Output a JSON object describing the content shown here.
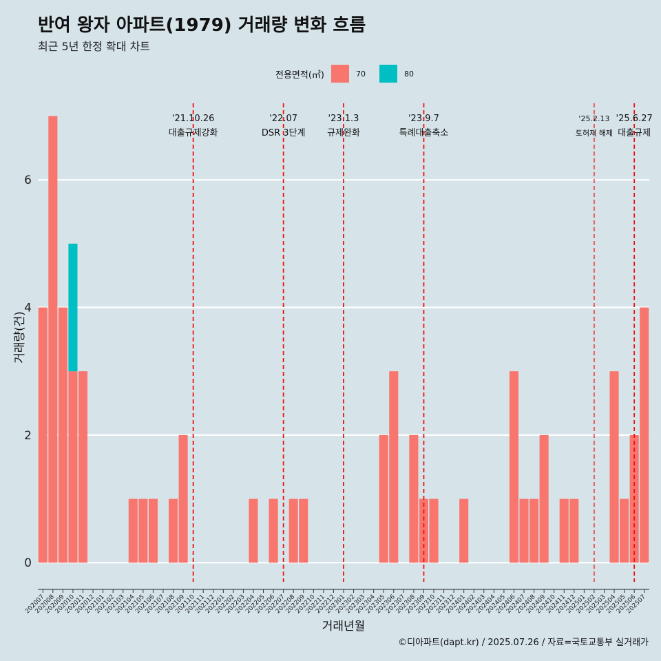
{
  "title": "반여 왕자 아파트(1979) 거래량 변화 흐름",
  "subtitle": "최근 5년 한정 확대 차트",
  "legend": {
    "title": "전용면적(㎡)",
    "items": [
      {
        "label": "70",
        "color": "#f8766d"
      },
      {
        "label": "80",
        "color": "#00bfc4"
      }
    ]
  },
  "caption": "©디아파트(dapt.kr) / 2025.07.26 / 자료=국토교통부 실거래가",
  "chart_data": {
    "type": "bar",
    "xlabel": "거래년월",
    "ylabel": "거래량(건)",
    "ylim": [
      -0.3,
      7.2
    ],
    "yticks": [
      0,
      2,
      4,
      6
    ],
    "categories": [
      "202007",
      "202008",
      "202009",
      "202010",
      "202011",
      "202012",
      "202101",
      "202102",
      "202103",
      "202104",
      "202105",
      "202106",
      "202107",
      "202108",
      "202109",
      "202110",
      "202111",
      "202112",
      "202201",
      "202202",
      "202203",
      "202204",
      "202205",
      "202206",
      "202207",
      "202208",
      "202209",
      "202210",
      "202211",
      "202212",
      "202301",
      "202302",
      "202303",
      "202304",
      "202305",
      "202306",
      "202307",
      "202308",
      "202309",
      "202310",
      "202311",
      "202312",
      "202401",
      "202402",
      "202403",
      "202404",
      "202405",
      "202406",
      "202407",
      "202408",
      "202409",
      "202410",
      "202411",
      "202412",
      "202501",
      "202502",
      "202503",
      "202504",
      "202505",
      "202506",
      "202507"
    ],
    "series": [
      {
        "name": "70",
        "color": "#f8766d",
        "values": [
          4,
          7,
          4,
          3,
          3,
          0,
          0,
          0,
          0,
          1,
          1,
          1,
          0,
          1,
          2,
          0,
          0,
          0,
          0,
          0,
          0,
          1,
          0,
          1,
          0,
          1,
          1,
          0,
          0,
          0,
          0,
          0,
          0,
          0,
          2,
          3,
          0,
          2,
          1,
          1,
          0,
          0,
          1,
          0,
          0,
          0,
          0,
          3,
          1,
          1,
          2,
          0,
          1,
          1,
          0,
          0,
          0,
          3,
          1,
          2,
          4
        ]
      },
      {
        "name": "80",
        "color": "#00bfc4",
        "values": [
          0,
          0,
          0,
          2,
          0,
          0,
          0,
          0,
          0,
          0,
          0,
          0,
          0,
          0,
          0,
          0,
          0,
          0,
          0,
          0,
          0,
          0,
          0,
          0,
          0,
          0,
          0,
          0,
          0,
          0,
          0,
          0,
          0,
          0,
          0,
          0,
          0,
          0,
          0,
          0,
          0,
          0,
          0,
          0,
          0,
          0,
          0,
          0,
          0,
          0,
          0,
          0,
          0,
          0,
          0,
          0,
          0,
          0,
          0,
          0,
          0
        ]
      }
    ],
    "events": [
      {
        "x": 15.5,
        "date": "'21.10.26",
        "label": "대출규제강화",
        "small": false
      },
      {
        "x": 24.5,
        "date": "'22.07",
        "label": "DSR 3단계",
        "small": false
      },
      {
        "x": 30.5,
        "date": "'23.1.3",
        "label": "규제완화",
        "small": false
      },
      {
        "x": 38.5,
        "date": "'23.9.7",
        "label": "특례대출축소",
        "small": false
      },
      {
        "x": 55.5,
        "date": "'25.2.13",
        "label": "토허제 해제",
        "small": true
      },
      {
        "x": 59.5,
        "date": "'25.6.27",
        "label": "대출규제",
        "small": false
      }
    ]
  }
}
